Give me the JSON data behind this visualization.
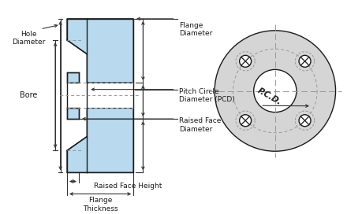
{
  "bg_color": "#ffffff",
  "flange_color": "#b8d9ee",
  "flange_outline": "#1a1a1a",
  "dim_line_color": "#333333",
  "text_color": "#1a1a1a",
  "centerline_color": "#999999",
  "pcd_label": "P.C.D.",
  "labels": {
    "hole_diameter": "Hole\nDiameter",
    "bore": "Bore",
    "flange_diameter": "Flange\nDiameter",
    "pitch_circle": "Pitch Circle\nDiameter (PCD)",
    "raised_face_diam": "Raised Face\nDiameter",
    "raised_face_height": "Raised Face Height",
    "flange_thickness": "Flange\nThickness"
  }
}
